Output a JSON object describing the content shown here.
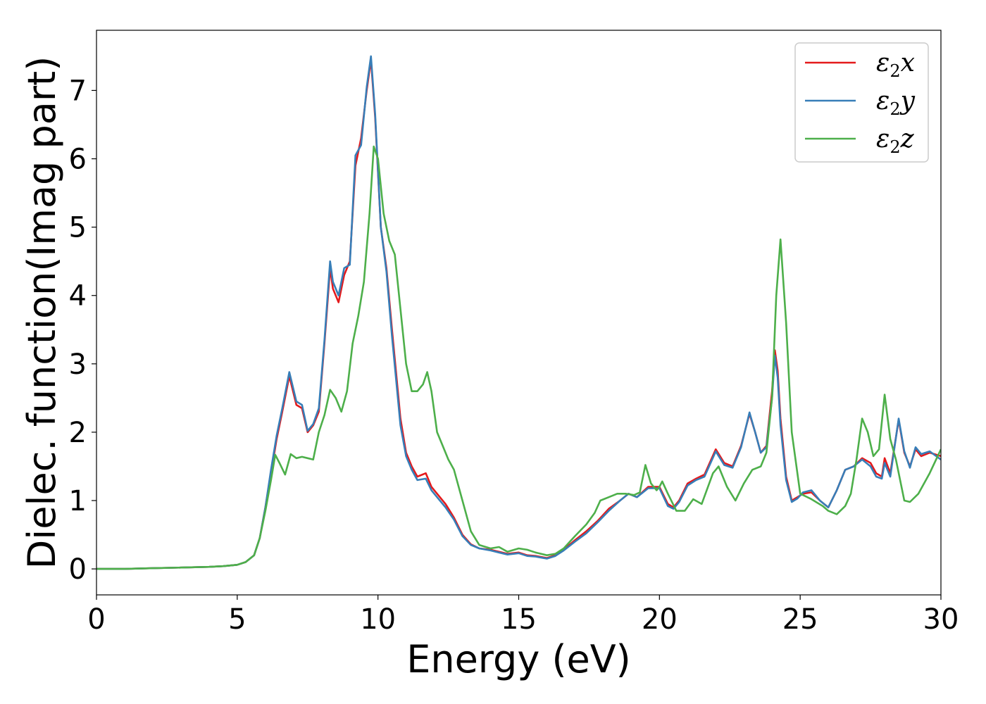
{
  "chart_data": {
    "type": "line",
    "xlabel": "Energy (eV)",
    "ylabel": "Dielec. function(Imag part)",
    "xlim": [
      0,
      30
    ],
    "ylim": [
      -0.38,
      7.88
    ],
    "xticks": [
      "0",
      "5",
      "10",
      "15",
      "20",
      "25",
      "30"
    ],
    "yticks": [
      "0",
      "1",
      "2",
      "3",
      "4",
      "5",
      "6",
      "7"
    ],
    "grid": false,
    "legend_position": "top-right",
    "series": [
      {
        "name": "ε2x",
        "legend": {
          "base": "ε",
          "sub": "2",
          "var": "x"
        },
        "color": "#e41a1c",
        "x": [
          0,
          1,
          2,
          3,
          4,
          4.5,
          5,
          5.3,
          5.6,
          5.8,
          6.0,
          6.2,
          6.4,
          6.6,
          6.85,
          7.1,
          7.3,
          7.5,
          7.7,
          7.9,
          8.1,
          8.3,
          8.4,
          8.6,
          8.8,
          9.0,
          9.2,
          9.4,
          9.6,
          9.75,
          9.9,
          10.1,
          10.3,
          10.5,
          10.8,
          11.0,
          11.2,
          11.4,
          11.7,
          11.9,
          12.1,
          12.4,
          12.7,
          13.0,
          13.3,
          13.6,
          14.0,
          14.3,
          14.6,
          15.0,
          15.3,
          15.6,
          16.0,
          16.3,
          16.6,
          17.0,
          17.4,
          17.8,
          18.2,
          18.6,
          18.9,
          19.2,
          19.6,
          20.0,
          20.3,
          20.5,
          20.7,
          21.0,
          21.3,
          21.6,
          22.0,
          22.3,
          22.6,
          22.9,
          23.2,
          23.4,
          23.6,
          23.8,
          24.0,
          24.1,
          24.2,
          24.3,
          24.5,
          24.7,
          24.9,
          25.1,
          25.4,
          25.7,
          26.0,
          26.3,
          26.6,
          26.9,
          27.2,
          27.5,
          27.7,
          27.9,
          28.0,
          28.2,
          28.5,
          28.7,
          28.9,
          29.1,
          29.3,
          29.6,
          30.0
        ],
        "y": [
          0.0,
          0.0,
          0.01,
          0.02,
          0.03,
          0.04,
          0.06,
          0.1,
          0.2,
          0.45,
          0.9,
          1.4,
          1.9,
          2.3,
          2.82,
          2.4,
          2.35,
          2.0,
          2.1,
          2.3,
          3.3,
          4.4,
          4.1,
          3.9,
          4.3,
          4.5,
          5.9,
          6.3,
          7.0,
          7.45,
          6.6,
          5.0,
          4.4,
          3.5,
          2.2,
          1.7,
          1.5,
          1.35,
          1.4,
          1.2,
          1.1,
          0.95,
          0.75,
          0.5,
          0.36,
          0.3,
          0.28,
          0.25,
          0.22,
          0.24,
          0.2,
          0.19,
          0.16,
          0.2,
          0.28,
          0.42,
          0.55,
          0.7,
          0.88,
          1.0,
          1.1,
          1.05,
          1.2,
          1.2,
          0.95,
          0.9,
          1.0,
          1.25,
          1.32,
          1.38,
          1.75,
          1.55,
          1.5,
          1.8,
          2.27,
          2.0,
          1.7,
          1.8,
          2.6,
          3.2,
          2.9,
          2.2,
          1.35,
          1.0,
          1.05,
          1.1,
          1.12,
          1.0,
          0.9,
          1.15,
          1.45,
          1.5,
          1.62,
          1.55,
          1.4,
          1.35,
          1.62,
          1.4,
          2.18,
          1.7,
          1.5,
          1.75,
          1.65,
          1.7,
          1.65
        ]
      },
      {
        "name": "ε2y",
        "legend": {
          "base": "ε",
          "sub": "2",
          "var": "y"
        },
        "color": "#377eb8",
        "x": [
          0,
          1,
          2,
          3,
          4,
          4.5,
          5,
          5.3,
          5.6,
          5.8,
          6.0,
          6.2,
          6.4,
          6.6,
          6.85,
          7.1,
          7.3,
          7.5,
          7.7,
          7.9,
          8.1,
          8.3,
          8.4,
          8.6,
          8.8,
          9.0,
          9.2,
          9.4,
          9.6,
          9.75,
          9.9,
          10.1,
          10.3,
          10.5,
          10.8,
          11.0,
          11.2,
          11.4,
          11.7,
          11.9,
          12.1,
          12.4,
          12.7,
          13.0,
          13.3,
          13.6,
          14.0,
          14.3,
          14.6,
          15.0,
          15.3,
          15.6,
          16.0,
          16.3,
          16.6,
          17.0,
          17.4,
          17.8,
          18.2,
          18.6,
          18.9,
          19.2,
          19.6,
          20.0,
          20.3,
          20.5,
          20.7,
          21.0,
          21.3,
          21.6,
          22.0,
          22.3,
          22.6,
          22.9,
          23.2,
          23.4,
          23.6,
          23.8,
          24.0,
          24.1,
          24.2,
          24.3,
          24.5,
          24.7,
          24.9,
          25.1,
          25.4,
          25.7,
          26.0,
          26.3,
          26.6,
          26.9,
          27.2,
          27.5,
          27.7,
          27.9,
          28.0,
          28.2,
          28.5,
          28.7,
          28.9,
          29.1,
          29.3,
          29.6,
          30.0
        ],
        "y": [
          0.0,
          0.0,
          0.01,
          0.02,
          0.03,
          0.04,
          0.06,
          0.1,
          0.2,
          0.45,
          0.9,
          1.45,
          1.95,
          2.35,
          2.88,
          2.45,
          2.4,
          2.02,
          2.12,
          2.35,
          3.35,
          4.5,
          4.2,
          4.0,
          4.4,
          4.45,
          6.05,
          6.2,
          7.05,
          7.5,
          6.65,
          5.0,
          4.35,
          3.4,
          2.1,
          1.65,
          1.45,
          1.3,
          1.32,
          1.15,
          1.05,
          0.9,
          0.72,
          0.48,
          0.35,
          0.3,
          0.27,
          0.24,
          0.21,
          0.23,
          0.19,
          0.18,
          0.15,
          0.19,
          0.27,
          0.4,
          0.52,
          0.68,
          0.85,
          1.0,
          1.1,
          1.05,
          1.18,
          1.18,
          0.92,
          0.88,
          0.98,
          1.22,
          1.3,
          1.35,
          1.72,
          1.52,
          1.48,
          1.78,
          2.29,
          2.0,
          1.7,
          1.78,
          2.5,
          3.12,
          2.8,
          2.1,
          1.3,
          0.98,
          1.03,
          1.12,
          1.15,
          1.0,
          0.9,
          1.15,
          1.45,
          1.5,
          1.6,
          1.5,
          1.35,
          1.32,
          1.55,
          1.35,
          2.2,
          1.72,
          1.48,
          1.78,
          1.68,
          1.72,
          1.6
        ]
      },
      {
        "name": "ε2z",
        "legend": {
          "base": "ε",
          "sub": "2",
          "var": "z"
        },
        "color": "#4daf4a",
        "x": [
          0,
          1,
          2,
          3,
          4,
          4.5,
          5,
          5.3,
          5.6,
          5.8,
          6.0,
          6.2,
          6.35,
          6.5,
          6.7,
          6.9,
          7.1,
          7.3,
          7.5,
          7.7,
          7.9,
          8.1,
          8.3,
          8.5,
          8.7,
          8.9,
          9.1,
          9.3,
          9.5,
          9.7,
          9.85,
          10.0,
          10.2,
          10.4,
          10.6,
          10.8,
          11.0,
          11.2,
          11.4,
          11.6,
          11.75,
          11.9,
          12.1,
          12.3,
          12.5,
          12.7,
          13.0,
          13.3,
          13.6,
          14.0,
          14.3,
          14.6,
          15.0,
          15.3,
          15.6,
          16.0,
          16.3,
          16.6,
          17.0,
          17.4,
          17.7,
          17.9,
          18.2,
          18.5,
          18.8,
          19.1,
          19.3,
          19.5,
          19.7,
          19.9,
          20.0,
          20.1,
          20.3,
          20.6,
          20.9,
          21.2,
          21.5,
          21.9,
          22.1,
          22.4,
          22.7,
          23.0,
          23.3,
          23.6,
          23.8,
          24.0,
          24.15,
          24.3,
          24.5,
          24.7,
          25.0,
          25.4,
          25.8,
          26.0,
          26.3,
          26.6,
          26.8,
          27.0,
          27.2,
          27.4,
          27.6,
          27.8,
          28.0,
          28.2,
          28.4,
          28.7,
          28.9,
          29.2,
          29.6,
          30.0
        ],
        "y": [
          0.0,
          0.0,
          0.01,
          0.02,
          0.03,
          0.04,
          0.06,
          0.1,
          0.2,
          0.45,
          0.85,
          1.3,
          1.67,
          1.55,
          1.38,
          1.68,
          1.62,
          1.64,
          1.62,
          1.6,
          2.0,
          2.25,
          2.62,
          2.5,
          2.3,
          2.6,
          3.3,
          3.7,
          4.2,
          5.2,
          6.18,
          6.0,
          5.2,
          4.8,
          4.6,
          3.8,
          3.0,
          2.6,
          2.6,
          2.7,
          2.88,
          2.6,
          2.0,
          1.8,
          1.6,
          1.45,
          1.0,
          0.55,
          0.35,
          0.3,
          0.32,
          0.25,
          0.3,
          0.28,
          0.24,
          0.2,
          0.22,
          0.3,
          0.48,
          0.65,
          0.82,
          1.0,
          1.05,
          1.1,
          1.1,
          1.08,
          1.12,
          1.52,
          1.25,
          1.15,
          1.2,
          1.28,
          1.1,
          0.85,
          0.85,
          1.02,
          0.95,
          1.4,
          1.5,
          1.2,
          1.0,
          1.25,
          1.45,
          1.5,
          1.7,
          2.5,
          4.0,
          4.82,
          3.6,
          2.0,
          1.1,
          1.02,
          0.92,
          0.85,
          0.8,
          0.92,
          1.1,
          1.6,
          2.2,
          2.0,
          1.65,
          1.75,
          2.55,
          1.9,
          1.6,
          1.0,
          0.98,
          1.1,
          1.4,
          1.75
        ]
      }
    ]
  }
}
